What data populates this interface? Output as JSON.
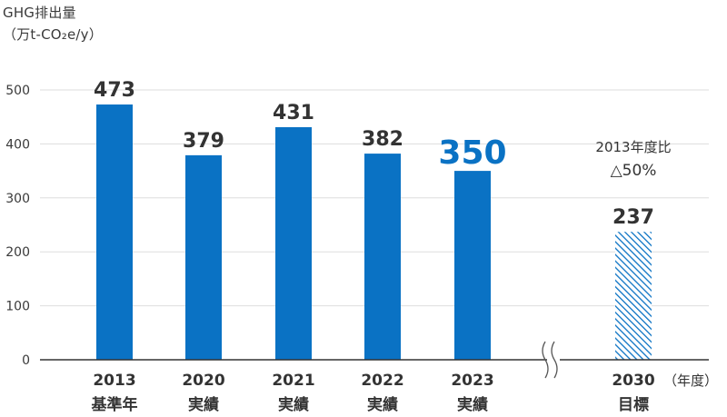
{
  "chart_data": {
    "type": "bar",
    "ylabel_lines": [
      "GHG排出量",
      "（万t-CO₂e/y）"
    ],
    "ylim": [
      0,
      500
    ],
    "yticks": [
      0,
      100,
      200,
      300,
      400,
      500
    ],
    "x_unit": "（年度）",
    "categories": [
      {
        "year": "2013",
        "sub": "基準年"
      },
      {
        "year": "2020",
        "sub": "実績"
      },
      {
        "year": "2021",
        "sub": "実績"
      },
      {
        "year": "2022",
        "sub": "実績"
      },
      {
        "year": "2023",
        "sub": "実績"
      },
      {
        "year": "2030",
        "sub": "目標"
      }
    ],
    "values": [
      473,
      379,
      431,
      382,
      350,
      237
    ],
    "value_labels": [
      "473",
      "379",
      "431",
      "382",
      "350",
      "237"
    ],
    "highlight_index": 4,
    "target_index": 5,
    "axis_break": true,
    "annotation_lines": [
      "2013年度比",
      "△50%"
    ],
    "colors": {
      "bar": "#0a72c4",
      "highlight_text": "#0a72c4",
      "target_hatch": "#0a72c4",
      "axis": "#333333",
      "grid": "#dddddd"
    }
  }
}
